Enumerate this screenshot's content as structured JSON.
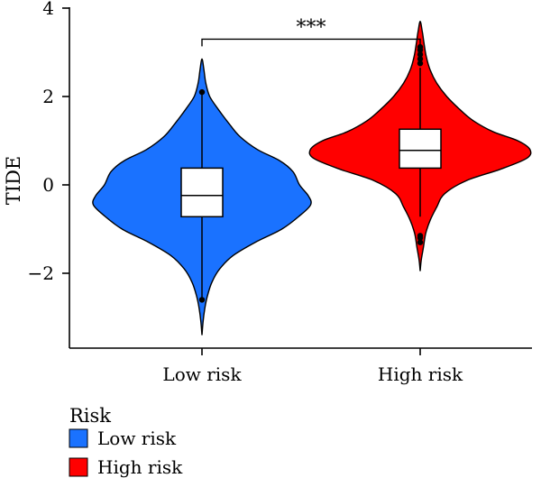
{
  "chart_data": {
    "type": "violin",
    "ylabel": "TIDE",
    "xlabel": "",
    "ylim": [
      -3.9,
      4.0
    ],
    "yticks": [
      {
        "value": 4,
        "label": "4"
      },
      {
        "value": 2,
        "label": "2"
      },
      {
        "value": 0,
        "label": "0"
      },
      {
        "value": -2,
        "label": "−2"
      }
    ],
    "categories": [
      "Low risk",
      "High risk"
    ],
    "series": [
      {
        "name": "Low risk",
        "color": "#1a72ff",
        "min": -3.4,
        "max": 2.85,
        "q1": -0.72,
        "median": -0.24,
        "q3": 0.38,
        "whisker_low": -2.55,
        "whisker_high": 2.15,
        "outliers": [
          -2.6,
          2.1
        ],
        "density": [
          [
            -3.4,
            0.0
          ],
          [
            -3.1,
            0.01
          ],
          [
            -2.8,
            0.025
          ],
          [
            -2.5,
            0.05
          ],
          [
            -2.2,
            0.09
          ],
          [
            -1.9,
            0.16
          ],
          [
            -1.6,
            0.28
          ],
          [
            -1.3,
            0.48
          ],
          [
            -1.0,
            0.72
          ],
          [
            -0.7,
            0.88
          ],
          [
            -0.45,
            0.98
          ],
          [
            -0.25,
            0.96
          ],
          [
            0.0,
            0.88
          ],
          [
            0.3,
            0.82
          ],
          [
            0.55,
            0.7
          ],
          [
            0.8,
            0.5
          ],
          [
            1.1,
            0.34
          ],
          [
            1.4,
            0.24
          ],
          [
            1.7,
            0.15
          ],
          [
            2.0,
            0.07
          ],
          [
            2.3,
            0.035
          ],
          [
            2.6,
            0.018
          ],
          [
            2.85,
            0.0
          ]
        ]
      },
      {
        "name": "High risk",
        "color": "#ff0000",
        "min": -1.95,
        "max": 3.7,
        "q1": 0.38,
        "median": 0.78,
        "q3": 1.26,
        "whisker_low": -0.72,
        "whisker_high": 2.65,
        "outliers": [
          -1.15,
          -1.2,
          -1.3,
          2.75,
          2.85,
          2.95,
          3.05,
          3.12
        ],
        "density": [
          [
            -1.95,
            0.0
          ],
          [
            -1.7,
            0.01
          ],
          [
            -1.4,
            0.03
          ],
          [
            -1.1,
            0.05
          ],
          [
            -0.8,
            0.09
          ],
          [
            -0.5,
            0.15
          ],
          [
            -0.2,
            0.22
          ],
          [
            0.1,
            0.42
          ],
          [
            0.35,
            0.72
          ],
          [
            0.6,
            0.96
          ],
          [
            0.8,
            0.99
          ],
          [
            1.0,
            0.88
          ],
          [
            1.2,
            0.66
          ],
          [
            1.45,
            0.48
          ],
          [
            1.7,
            0.36
          ],
          [
            2.0,
            0.24
          ],
          [
            2.3,
            0.15
          ],
          [
            2.6,
            0.09
          ],
          [
            2.9,
            0.055
          ],
          [
            3.2,
            0.035
          ],
          [
            3.45,
            0.02
          ],
          [
            3.7,
            0.0
          ]
        ]
      }
    ],
    "significance": {
      "label": "***",
      "between": [
        "Low risk",
        "High risk"
      ],
      "y": 3.4
    },
    "legend": {
      "title": "Risk",
      "position": "bottom-left",
      "entries": [
        {
          "label": "Low risk",
          "color": "#1a72ff"
        },
        {
          "label": "High risk",
          "color": "#ff0000"
        }
      ]
    }
  }
}
